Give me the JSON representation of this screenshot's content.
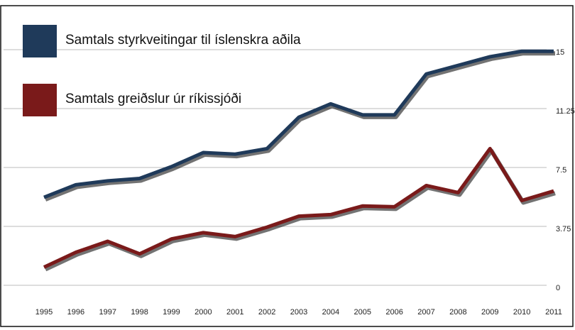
{
  "chart_data": {
    "type": "line",
    "categories": [
      "1995",
      "1996",
      "1997",
      "1998",
      "1999",
      "2000",
      "2001",
      "2002",
      "2003",
      "2004",
      "2005",
      "2006",
      "2007",
      "2008",
      "2009",
      "2010",
      "2011"
    ],
    "series": [
      {
        "name": "Samtals styrkveitingar til íslenskra aðila",
        "color": "#1f3a5a",
        "values": [
          5.6,
          6.4,
          6.65,
          6.8,
          7.55,
          8.45,
          8.35,
          8.7,
          10.7,
          11.55,
          10.85,
          10.85,
          13.45,
          14.0,
          14.55,
          14.9,
          14.9
        ]
      },
      {
        "name": "Samtals greiðslur úr ríkissjóði",
        "color": "#7a1a1a",
        "values": [
          1.15,
          2.1,
          2.8,
          2.0,
          2.95,
          3.35,
          3.1,
          3.7,
          4.4,
          4.5,
          5.05,
          5.0,
          6.35,
          5.9,
          8.7,
          5.4,
          6.0
        ]
      }
    ],
    "ylim": [
      0,
      15
    ],
    "yticks": [
      0,
      3.75,
      7.5,
      11.25,
      15
    ],
    "grid": true,
    "legend": "top-left"
  }
}
